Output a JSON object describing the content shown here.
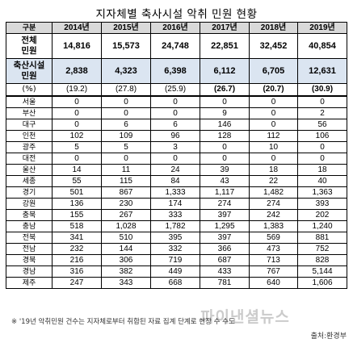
{
  "title": "지자체별 축사시설 악취 민원 현황",
  "table": {
    "corner": "구분",
    "years": [
      "2014년",
      "2015년",
      "2016년",
      "2017년",
      "2018년",
      "2019년"
    ],
    "total": {
      "label1": "전체",
      "label2": "민원",
      "values": [
        "14,816",
        "15,573",
        "24,748",
        "22,851",
        "32,452",
        "40,854"
      ]
    },
    "livestock": {
      "label1": "축산시설",
      "label2": "민원",
      "values": [
        "2,838",
        "4,323",
        "6,398",
        "6,112",
        "6,705",
        "12,631"
      ]
    },
    "percent": {
      "label": "(%)",
      "values": [
        "(19.2)",
        "(27.8)",
        "(25.9)",
        "(26.7)",
        "(20.7)",
        "(30.9)"
      ]
    },
    "regions": [
      {
        "name": "서울",
        "values": [
          "0",
          "0",
          "0",
          "0",
          "0",
          "0"
        ]
      },
      {
        "name": "부산",
        "values": [
          "0",
          "0",
          "0",
          "9",
          "0",
          "2"
        ]
      },
      {
        "name": "대구",
        "values": [
          "0",
          "6",
          "6",
          "146",
          "0",
          "56"
        ]
      },
      {
        "name": "인천",
        "values": [
          "102",
          "109",
          "96",
          "128",
          "112",
          "106"
        ]
      },
      {
        "name": "광주",
        "values": [
          "5",
          "5",
          "3",
          "0",
          "10",
          "0"
        ]
      },
      {
        "name": "대전",
        "values": [
          "0",
          "0",
          "0",
          "0",
          "0",
          "0"
        ]
      },
      {
        "name": "울산",
        "values": [
          "14",
          "11",
          "24",
          "39",
          "18",
          "18"
        ]
      },
      {
        "name": "세종",
        "values": [
          "55",
          "115",
          "84",
          "43",
          "22",
          "40"
        ]
      },
      {
        "name": "경기",
        "values": [
          "501",
          "867",
          "1,333",
          "1,117",
          "1,482",
          "1,363"
        ]
      },
      {
        "name": "강원",
        "values": [
          "136",
          "230",
          "174",
          "274",
          "274",
          "393"
        ]
      },
      {
        "name": "충북",
        "values": [
          "155",
          "267",
          "333",
          "397",
          "242",
          "202"
        ]
      },
      {
        "name": "충남",
        "values": [
          "518",
          "1,028",
          "1,782",
          "1,295",
          "1,383",
          "1,240"
        ]
      },
      {
        "name": "전북",
        "values": [
          "341",
          "510",
          "395",
          "397",
          "569",
          "881"
        ]
      },
      {
        "name": "전남",
        "values": [
          "232",
          "144",
          "332",
          "366",
          "473",
          "752"
        ]
      },
      {
        "name": "경북",
        "values": [
          "216",
          "306",
          "719",
          "687",
          "713",
          "828"
        ]
      },
      {
        "name": "경남",
        "values": [
          "316",
          "382",
          "449",
          "433",
          "767",
          "5,144"
        ]
      },
      {
        "name": "제주",
        "values": [
          "247",
          "343",
          "668",
          "781",
          "640",
          "1,606"
        ]
      }
    ]
  },
  "note": "※ '19년 악취민원 건수는 지자체로부터 취합된 자료 집계 단계로 현장 수 수도",
  "watermark": "파이낸셜뉴스",
  "source": "출처:환경부"
}
